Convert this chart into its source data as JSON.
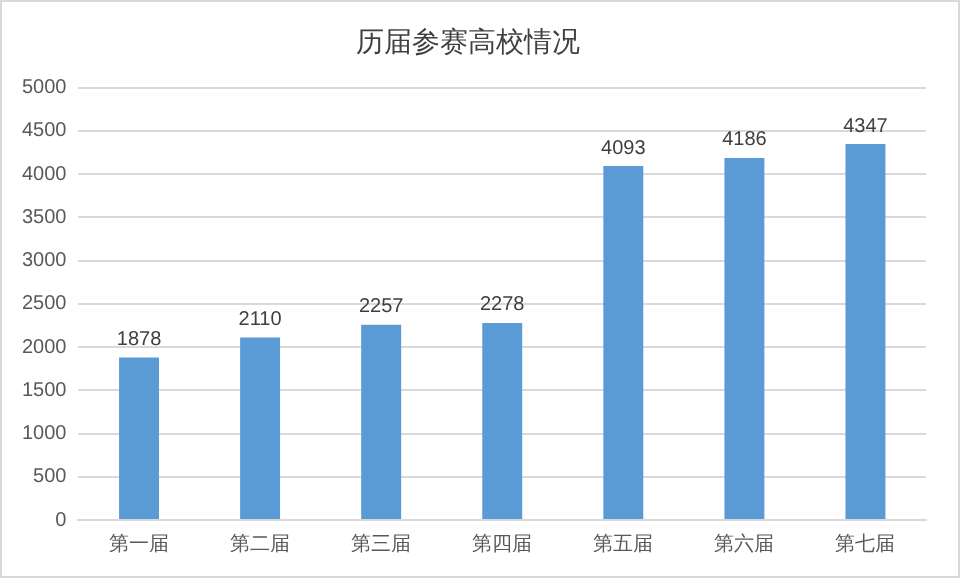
{
  "chart_data": {
    "type": "bar",
    "title": "历届参赛高校情况",
    "categories": [
      "第一届",
      "第二届",
      "第三届",
      "第四届",
      "第五届",
      "第六届",
      "第七届"
    ],
    "values": [
      1878,
      2110,
      2257,
      2278,
      4093,
      4186,
      4347
    ],
    "color": "#5b9bd5",
    "ylim": [
      0,
      5000
    ],
    "yticks": [
      0,
      500,
      1000,
      1500,
      2000,
      2500,
      3000,
      3500,
      4000,
      4500,
      5000
    ],
    "grid": "y",
    "legend": false,
    "data_labels": true
  }
}
